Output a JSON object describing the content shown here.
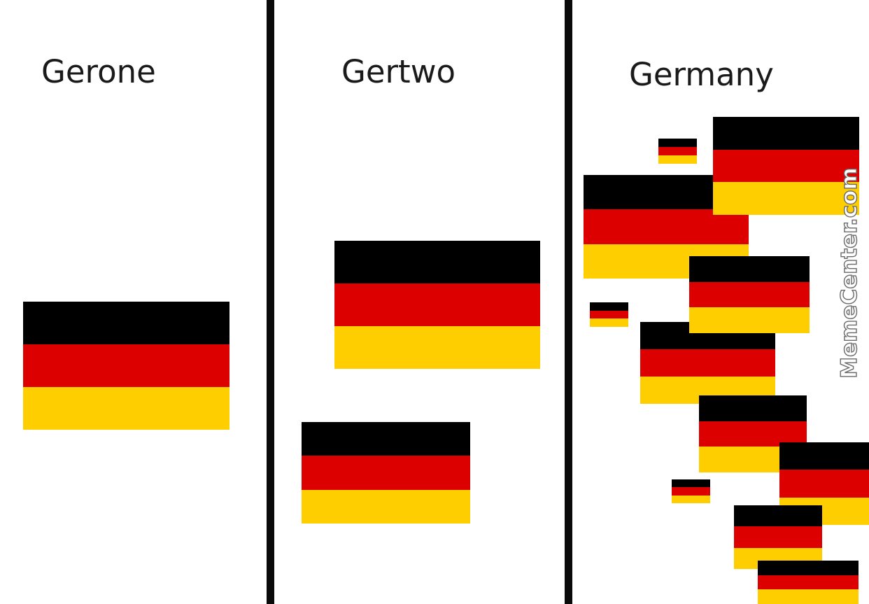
{
  "panels": [
    {
      "title": "Gerone"
    },
    {
      "title": "Gertwo"
    },
    {
      "title": "Germany"
    }
  ],
  "flag": {
    "name": "german-flag",
    "stripe_colors": [
      "#000000",
      "#dd0000",
      "#ffce00"
    ]
  },
  "watermark": {
    "text": "MemeCenter.com"
  },
  "colors": {
    "background": "#ffffff",
    "divider": "#0a0a0a",
    "text": "#1a1a1a"
  }
}
